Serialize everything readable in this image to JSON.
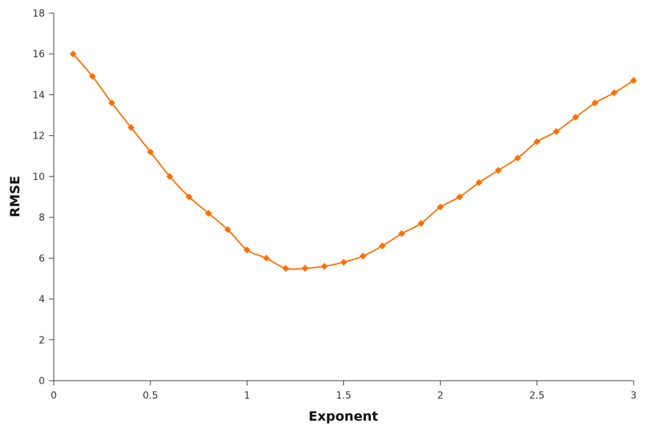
{
  "chart_data": {
    "type": "line",
    "title": "",
    "xlabel": "Exponent",
    "ylabel": "RMSE",
    "xlim": [
      0,
      3
    ],
    "ylim": [
      0,
      18
    ],
    "grid": false,
    "legend": "none",
    "x_ticks": [
      "0",
      "0.5",
      "1",
      "1.5",
      "2",
      "2.5",
      "3"
    ],
    "y_ticks": [
      "0",
      "2",
      "4",
      "6",
      "8",
      "10",
      "12",
      "14",
      "16",
      "18"
    ],
    "series": [
      {
        "color": "#ff6f00",
        "marker": "diamond",
        "x": [
          0.1,
          0.2,
          0.3,
          0.4,
          0.5,
          0.6,
          0.7,
          0.8,
          0.9,
          1.0,
          1.1,
          1.2,
          1.3,
          1.4,
          1.5,
          1.6,
          1.7,
          1.8,
          1.9,
          2.0,
          2.1,
          2.2,
          2.3,
          2.4,
          2.5,
          2.6,
          2.7,
          2.8,
          2.9,
          3.0
        ],
        "y": [
          16.0,
          14.9,
          13.6,
          12.4,
          11.2,
          10.0,
          9.0,
          8.2,
          7.4,
          6.4,
          6.0,
          5.5,
          5.5,
          5.6,
          5.8,
          6.1,
          6.6,
          7.2,
          7.7,
          8.5,
          9.0,
          9.7,
          10.3,
          10.9,
          11.7,
          12.2,
          12.9,
          13.6,
          14.1,
          14.7
        ]
      }
    ]
  }
}
